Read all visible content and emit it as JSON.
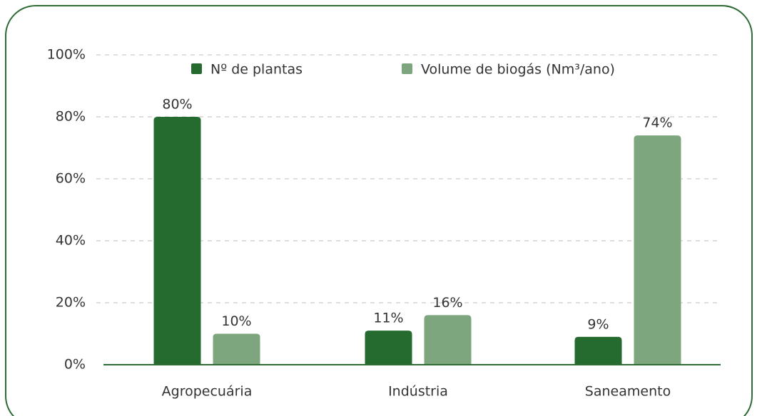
{
  "chart_data": {
    "type": "bar",
    "categories": [
      "Agropecuária",
      "Indústria",
      "Saneamento"
    ],
    "series": [
      {
        "name": "Nº de plantas",
        "color": "#256b2f",
        "values": [
          80,
          11,
          9
        ],
        "value_labels": [
          "80%",
          "11%",
          "9%"
        ]
      },
      {
        "name": "Volume de biogás (Nm³/ano)",
        "color": "#7ea67e",
        "values": [
          10,
          16,
          74
        ],
        "value_labels": [
          "10%",
          "16%",
          "74%"
        ]
      }
    ],
    "ylim": [
      0,
      100
    ],
    "yticks": [
      {
        "value": 0,
        "label": "0%"
      },
      {
        "value": 20,
        "label": "20%"
      },
      {
        "value": 40,
        "label": "40%"
      },
      {
        "value": 60,
        "label": "60%"
      },
      {
        "value": 80,
        "label": "80%"
      },
      {
        "value": 100,
        "label": "100%"
      }
    ],
    "grid": true
  }
}
